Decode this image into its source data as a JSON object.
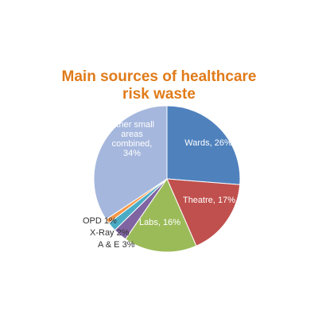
{
  "chart_data": {
    "type": "pie",
    "title_lines": [
      "Main sources of healthcare",
      "risk waste"
    ],
    "slices": [
      {
        "label_lines": [
          "Wards, 26%"
        ],
        "value": 26,
        "color": "#4f81bd"
      },
      {
        "label_lines": [
          "Theatre, 17%"
        ],
        "value": 17,
        "color": "#c0504d"
      },
      {
        "label_lines": [
          "Labs, 16%"
        ],
        "value": 16,
        "color": "#9bbb59"
      },
      {
        "label_lines": [
          "A & E 3%"
        ],
        "value": 3,
        "color": "#8064a2"
      },
      {
        "label_lines": [
          "X-Ray 2%"
        ],
        "value": 2,
        "color": "#4bacc6"
      },
      {
        "label_lines": [
          "OPD 1%"
        ],
        "value": 1,
        "color": "#f79646"
      },
      {
        "label_lines": [
          "Other small",
          "areas",
          "combined,",
          "34%"
        ],
        "value": 34,
        "color": "#a5b7dd"
      }
    ]
  }
}
